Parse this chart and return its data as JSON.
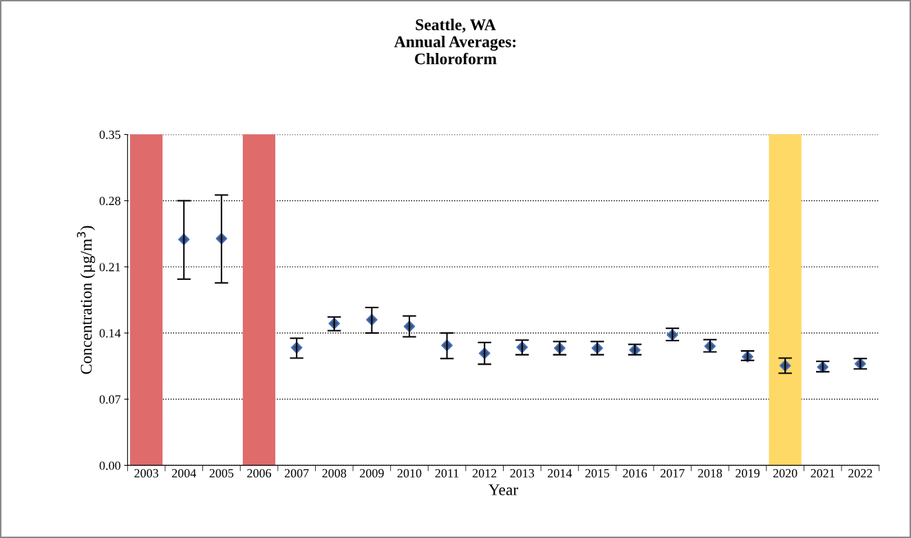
{
  "chart_data": {
    "type": "scatter",
    "title": "Seattle, WA\nAnnual Averages:\nChloroform",
    "xlabel": "Year",
    "ylabel": "Concentration (µg/m$^{3}$)",
    "categories": [
      "2003",
      "2004",
      "2005",
      "2006",
      "2007",
      "2008",
      "2009",
      "2010",
      "2011",
      "2012",
      "2013",
      "2014",
      "2015",
      "2016",
      "2017",
      "2018",
      "2019",
      "2020",
      "2021",
      "2022"
    ],
    "series": [
      {
        "color": "#3f5272",
        "values": [
          null,
          0.239,
          0.24,
          null,
          0.1245,
          0.15,
          0.154,
          0.147,
          0.127,
          0.1185,
          0.125,
          0.124,
          0.124,
          0.122,
          0.138,
          0.126,
          0.115,
          0.1055,
          0.104,
          0.1075
        ],
        "errors": [
          null,
          [
            0.197,
            0.28
          ],
          [
            0.193,
            0.286
          ],
          null,
          [
            0.1135,
            0.1345
          ],
          [
            0.1425,
            0.157
          ],
          [
            0.14,
            0.167
          ],
          [
            0.136,
            0.158
          ],
          [
            0.113,
            0.14
          ],
          [
            0.107,
            0.13
          ],
          [
            0.117,
            0.1325
          ],
          [
            0.117,
            0.131
          ],
          [
            0.117,
            0.131
          ],
          [
            0.117,
            0.128
          ],
          [
            0.132,
            0.145
          ],
          [
            0.12,
            0.133
          ],
          [
            0.111,
            0.121
          ],
          [
            0.0975,
            0.1135
          ],
          [
            0.099,
            0.11
          ],
          [
            0.102,
            0.113
          ]
        ]
      }
    ],
    "ylim": [
      0,
      0.35
    ],
    "yticks": [
      {
        "value": 0,
        "label": "0.00"
      },
      {
        "value": 0.07,
        "label": "0.07"
      },
      {
        "value": 0.14,
        "label": "0.14"
      },
      {
        "value": 0.21,
        "label": "0.21"
      },
      {
        "value": 0.28,
        "label": "0.28"
      },
      {
        "value": 0.35,
        "label": "0.35"
      }
    ],
    "bands": [
      {
        "axis": "x",
        "from": "2003",
        "to": "2003",
        "color": "#e06b6b"
      },
      {
        "axis": "x",
        "from": "2006",
        "to": "2006",
        "color": "#e06b6b"
      },
      {
        "axis": "x",
        "from": "2020",
        "to": "2020",
        "color": "#ffd966"
      }
    ],
    "grid": "y",
    "marker": "diamond",
    "legend": false
  }
}
